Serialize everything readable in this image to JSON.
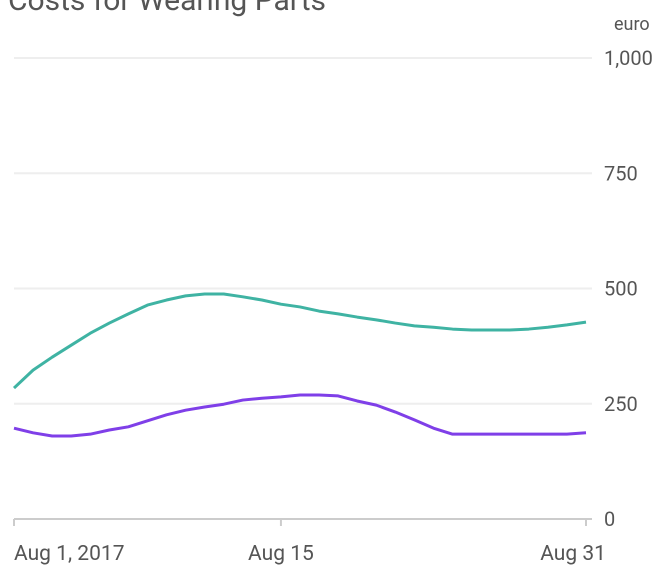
{
  "chart_data": {
    "type": "line",
    "title": "Costs for Wearing Parts",
    "y_unit": "euro",
    "x": [
      1,
      2,
      3,
      4,
      5,
      6,
      7,
      8,
      9,
      10,
      11,
      12,
      13,
      14,
      15,
      16,
      17,
      18,
      19,
      20,
      21,
      22,
      23,
      24,
      25,
      26,
      27,
      28,
      29,
      30,
      31
    ],
    "xlim": [
      1,
      31
    ],
    "xticks": [
      {
        "value": 1,
        "label": "Aug 1, 2017"
      },
      {
        "value": 15,
        "label": "Aug 15"
      },
      {
        "value": 31,
        "label": "Aug 31"
      }
    ],
    "ylim": [
      0,
      1000
    ],
    "yticks": [
      0,
      250,
      500,
      750,
      {
        "value": 1000,
        "label": "1,000"
      }
    ],
    "grid": true,
    "series": [
      {
        "color": "#3fb3a3",
        "values": [
          284,
          323,
          351,
          377,
          403,
          425,
          445,
          464,
          475,
          484,
          488,
          488,
          482,
          475,
          466,
          460,
          451,
          445,
          438,
          432,
          425,
          419,
          416,
          412,
          410,
          410,
          410,
          412,
          416,
          421,
          427
        ]
      },
      {
        "color": "#7f3fe8",
        "values": [
          197,
          187,
          180,
          180,
          184,
          193,
          200,
          213,
          226,
          236,
          243,
          249,
          258,
          262,
          265,
          269,
          269,
          267,
          256,
          247,
          232,
          215,
          197,
          184,
          184,
          184,
          184,
          184,
          184,
          184,
          187
        ]
      }
    ]
  }
}
